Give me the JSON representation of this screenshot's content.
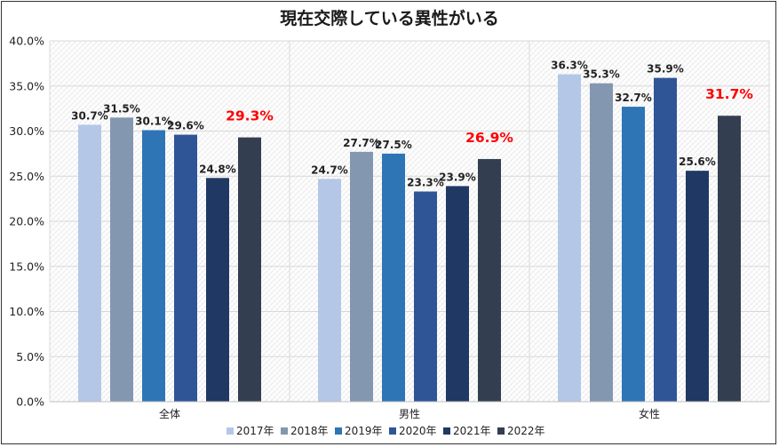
{
  "chart_data": {
    "type": "bar",
    "title": "現在交際している異性がいる",
    "categories": [
      "全体",
      "男性",
      "女性"
    ],
    "series": [
      {
        "name": "2017年",
        "color": "#b4c7e7",
        "values": [
          30.7,
          24.7,
          36.3
        ],
        "labels": [
          "30.7%",
          "24.7%",
          "36.3%"
        ]
      },
      {
        "name": "2018年",
        "color": "#8497b0",
        "values": [
          31.5,
          27.7,
          35.3
        ],
        "labels": [
          "31.5%",
          "27.7%",
          "35.3%"
        ]
      },
      {
        "name": "2019年",
        "color": "#2e75b6",
        "values": [
          30.1,
          27.5,
          32.7
        ],
        "labels": [
          "30.1%",
          "27.5%",
          "32.7%"
        ]
      },
      {
        "name": "2020年",
        "color": "#2f5597",
        "values": [
          29.6,
          23.3,
          35.9
        ],
        "labels": [
          "29.6%",
          "23.3%",
          "35.9%"
        ]
      },
      {
        "name": "2021年",
        "color": "#203864",
        "values": [
          24.8,
          23.9,
          25.6
        ],
        "labels": [
          "24.8%",
          "23.9%",
          "25.6%"
        ]
      },
      {
        "name": "2022年",
        "color": "#333f50",
        "values": [
          29.3,
          26.9,
          31.7
        ],
        "labels": [
          "29.3%",
          "26.9%",
          "31.7%"
        ]
      }
    ],
    "highlight_series": "2022年",
    "highlight_color": "#ff0000",
    "ylim": [
      0,
      40
    ],
    "yticks": [
      0,
      5,
      10,
      15,
      20,
      25,
      30,
      35,
      40
    ],
    "ytick_labels": [
      "0.0%",
      "5.0%",
      "10.0%",
      "15.0%",
      "20.0%",
      "25.0%",
      "30.0%",
      "35.0%",
      "40.0%"
    ],
    "xlabel": "",
    "ylabel": "",
    "grid": true,
    "legend_position": "bottom"
  }
}
